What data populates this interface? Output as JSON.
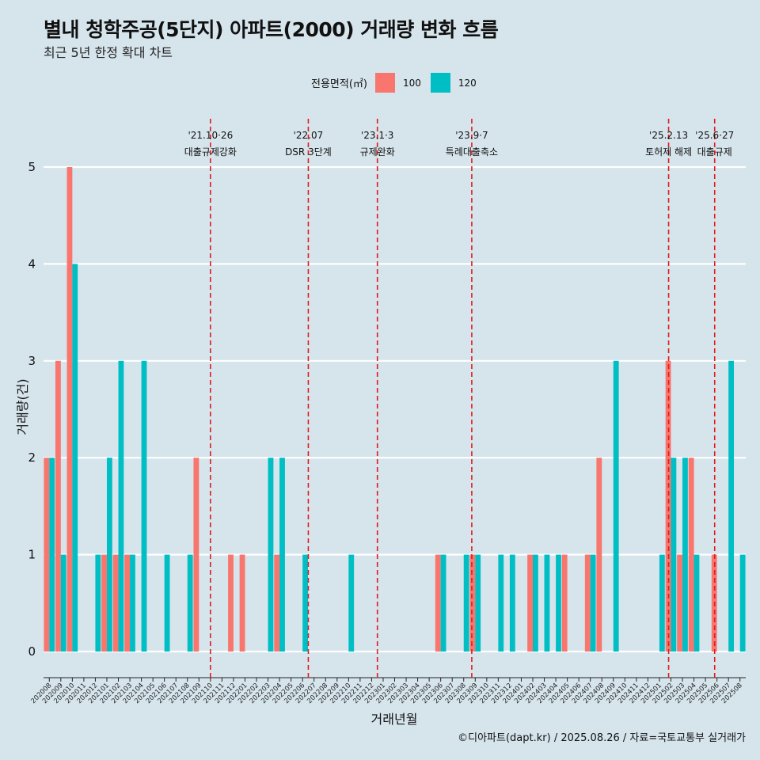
{
  "title": "별내 청학주공(5단지) 아파트(2000) 거래량 변화 흐름",
  "subtitle": "최근 5년 한정 확대 차트",
  "legend": {
    "title": "전용면적(㎡)",
    "items": [
      {
        "label": "100",
        "color": "#f8766d"
      },
      {
        "label": "120",
        "color": "#00bfc4"
      }
    ]
  },
  "footer": "©디아파트(dapt.kr) / 2025.08.26 / 자료=국토교통부 실거래가",
  "chart_data": {
    "type": "bar",
    "xlabel": "거래년월",
    "ylabel": "거래량(건)",
    "ylim": [
      0,
      5
    ],
    "yticks": [
      "0",
      "1",
      "2",
      "3",
      "4",
      "5"
    ],
    "categories": [
      "202008",
      "202009",
      "202010",
      "202011",
      "202012",
      "202101",
      "202102",
      "202103",
      "202104",
      "202105",
      "202106",
      "202107",
      "202108",
      "202109",
      "202110",
      "202111",
      "202112",
      "202201",
      "202202",
      "202203",
      "202204",
      "202205",
      "202206",
      "202207",
      "202208",
      "202209",
      "202210",
      "202211",
      "202212",
      "202301",
      "202302",
      "202303",
      "202304",
      "202305",
      "202306",
      "202307",
      "202308",
      "202309",
      "202310",
      "202311",
      "202312",
      "202401",
      "202402",
      "202403",
      "202404",
      "202405",
      "202406",
      "202407",
      "202408",
      "202409",
      "202410",
      "202411",
      "202412",
      "202501",
      "202502",
      "202503",
      "202504",
      "202505",
      "202506",
      "202507",
      "202508"
    ],
    "series": [
      {
        "name": "100",
        "color": "#f8766d",
        "values": [
          2,
          3,
          5,
          0,
          0,
          1,
          1,
          1,
          0,
          0,
          0,
          0,
          0,
          2,
          0,
          0,
          1,
          1,
          0,
          0,
          1,
          0,
          0,
          0,
          0,
          0,
          0,
          0,
          0,
          0,
          0,
          0,
          0,
          0,
          1,
          0,
          0,
          1,
          0,
          0,
          0,
          0,
          1,
          0,
          0,
          1,
          0,
          1,
          2,
          0,
          0,
          0,
          0,
          0,
          3,
          1,
          2,
          0,
          1,
          0,
          0
        ]
      },
      {
        "name": "120",
        "color": "#00bfc4",
        "values": [
          2,
          1,
          4,
          0,
          1,
          2,
          3,
          1,
          3,
          0,
          1,
          0,
          1,
          0,
          0,
          0,
          0,
          0,
          0,
          2,
          2,
          0,
          1,
          0,
          0,
          0,
          1,
          0,
          0,
          0,
          0,
          0,
          0,
          0,
          1,
          0,
          1,
          1,
          0,
          1,
          1,
          0,
          1,
          1,
          1,
          0,
          0,
          1,
          0,
          3,
          0,
          0,
          0,
          1,
          2,
          2,
          1,
          0,
          0,
          3,
          1
        ]
      }
    ],
    "annotations": [
      {
        "line1": "'21.10·26",
        "line2": "대출규제강화",
        "at": "202110",
        "offset": 0.5
      },
      {
        "line1": "'22.07",
        "line2": "DSR 3단계",
        "at": "202207",
        "offset": 0
      },
      {
        "line1": "'23.1·3",
        "line2": "규제완화",
        "at": "202301",
        "offset": 0
      },
      {
        "line1": "'23.9·7",
        "line2": "특례대출축소",
        "at": "202309",
        "offset": 0.2
      },
      {
        "line1": "'25.2.13",
        "line2": "토허제 해제",
        "at": "202502",
        "offset": 0.3
      },
      {
        "line1": "'25.6·27",
        "line2": "대출규제",
        "at": "202506",
        "offset": 0.3
      }
    ]
  }
}
